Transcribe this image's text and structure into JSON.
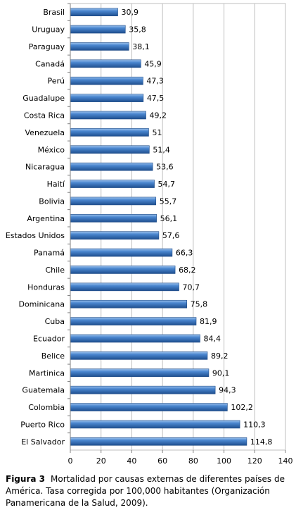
{
  "chart_data": {
    "type": "bar",
    "orientation": "horizontal",
    "categories": [
      "Brasil",
      "Uruguay",
      "Paraguay",
      "Canadá",
      "Perú",
      "Guadalupe",
      "Costa Rica",
      "Venezuela",
      "México",
      "Nicaragua",
      "Haití",
      "Bolivia",
      "Argentina",
      "Estados Unidos",
      "Panamá",
      "Chile",
      "Honduras",
      "Dominicana",
      "Cuba",
      "Ecuador",
      "Belice",
      "Martinica",
      "Guatemala",
      "Colombia",
      "Puerto Rico",
      "El Salvador"
    ],
    "values": [
      30.9,
      35.8,
      38.1,
      45.9,
      47.3,
      47.5,
      49.2,
      51,
      51.4,
      53.6,
      54.7,
      55.7,
      56.1,
      57.6,
      66.3,
      68.2,
      70.7,
      75.8,
      81.9,
      84.4,
      89.2,
      90.1,
      94.3,
      102.2,
      110.3,
      114.8
    ],
    "value_labels": [
      "30,9",
      "35,8",
      "38,1",
      "45,9",
      "47,3",
      "47,5",
      "49,2",
      "51",
      "51,4",
      "53,6",
      "54,7",
      "55,7",
      "56,1",
      "57,6",
      "66,3",
      "68,2",
      "70,7",
      "75,8",
      "81,9",
      "84,4",
      "89,2",
      "90,1",
      "94,3",
      "102,2",
      "110,3",
      "114,8"
    ],
    "xlim": [
      0,
      140
    ],
    "xticks": [
      0,
      20,
      40,
      60,
      80,
      100,
      120,
      140
    ],
    "title": "",
    "xlabel": "",
    "ylabel": "",
    "grid": "vertical",
    "legend": "none",
    "bar_color": "#3d78c2"
  },
  "caption": {
    "label": "Figura 3",
    "text": "Mortalidad por causas externas de diferentes países de América. Tasa corregida por 100,000 habitantes (Organización Panamericana de la Salud, 2009)."
  }
}
